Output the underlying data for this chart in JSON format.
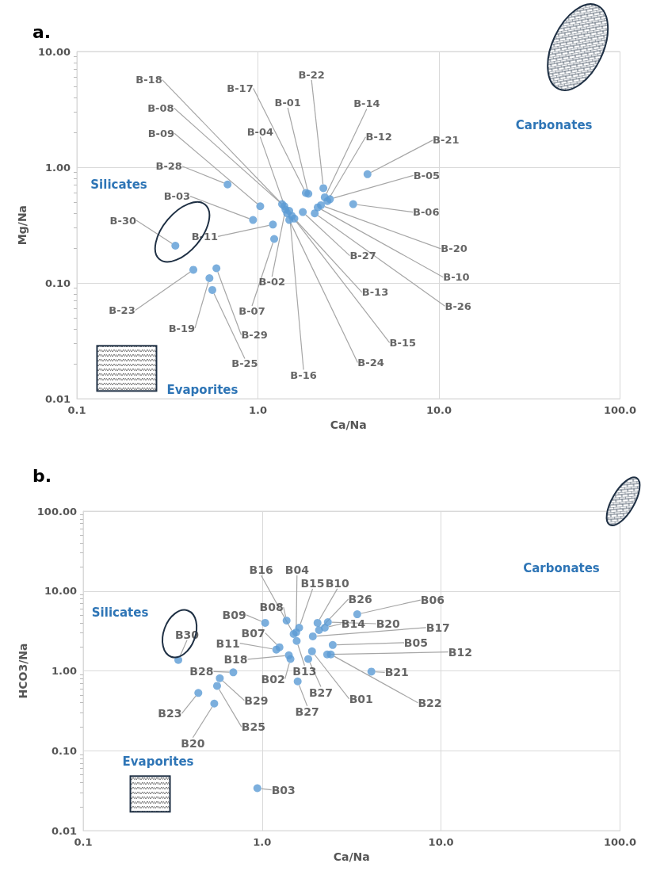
{
  "chart_data": [
    {
      "type": "scatter",
      "title": "a.",
      "xlabel": "Ca/Na",
      "ylabel": "Mg/Na",
      "log": "xy",
      "xlim": [
        0.1,
        100
      ],
      "ylim": [
        0.01,
        10
      ],
      "xticks": [
        {
          "value": 0.1,
          "label": "0.1"
        },
        {
          "value": 1,
          "label": "1.0"
        },
        {
          "value": 10,
          "label": "10.0"
        },
        {
          "value": 100,
          "label": "100.0"
        }
      ],
      "yticks": [
        {
          "value": 0.01,
          "label": "0.01"
        },
        {
          "value": 0.1,
          "label": "0.10"
        },
        {
          "value": 1,
          "label": "1.00"
        },
        {
          "value": 10,
          "label": "10.00"
        }
      ],
      "grid": true,
      "marker": "circle",
      "series": [
        {
          "color": "#5b9bd5",
          "x": [
            1.9,
            1.84,
            2.3,
            2.34,
            2.42,
            2.5,
            4.03,
            3.36,
            2.23,
            2.14,
            2.06,
            1.77,
            1.59,
            1.54,
            1.49,
            1.49,
            1.42,
            1.45,
            1.36,
            1.4,
            1.03,
            0.68,
            0.94,
            1.21,
            1.23,
            0.35,
            0.44,
            0.54,
            0.59,
            0.56
          ],
          "values": [
            0.59,
            0.6,
            0.66,
            0.55,
            0.51,
            0.53,
            0.87,
            0.48,
            0.47,
            0.45,
            0.4,
            0.41,
            0.36,
            0.38,
            0.35,
            0.42,
            0.43,
            0.4,
            0.48,
            0.46,
            0.46,
            0.71,
            0.35,
            0.32,
            0.24,
            0.21,
            0.13,
            0.11,
            0.134,
            0.087
          ],
          "value_labels": [
            "B-01",
            "B-17",
            "B-22",
            "B-14",
            "B-12",
            "B-05",
            "B-21",
            "B-06",
            "B-20",
            "B-10",
            "B-26",
            "B-27",
            "B-13",
            "B-15",
            "B-24",
            "B-16",
            "B-02",
            "B-04",
            "B-18",
            "B-08",
            "B-09",
            "B-28",
            "B-03",
            "B-11",
            "B-07",
            "B-30",
            "B-23",
            "B-19",
            "B-29",
            "B-25"
          ]
        }
      ],
      "annotations": [
        "Carbonates",
        "Silicates",
        "Evaporites"
      ]
    },
    {
      "type": "scatter",
      "title": "b.",
      "xlabel": "Ca/Na",
      "ylabel": "HCO3/Na",
      "log": "xy",
      "xlim": [
        0.1,
        100
      ],
      "ylim": [
        0.01,
        100
      ],
      "xticks": [
        {
          "value": 0.1,
          "label": "0.1"
        },
        {
          "value": 1,
          "label": "1.0"
        },
        {
          "value": 10,
          "label": "10.0"
        },
        {
          "value": 100,
          "label": "100.0"
        }
      ],
      "yticks": [
        {
          "value": 0.01,
          "label": "0.01"
        },
        {
          "value": 0.1,
          "label": "0.10"
        },
        {
          "value": 1,
          "label": "1.00"
        },
        {
          "value": 10,
          "label": "10.00"
        },
        {
          "value": 100,
          "label": "100.00"
        }
      ],
      "grid": true,
      "marker": "circle",
      "series": [
        {
          "color": "#5b9bd5",
          "x": [
            1.5,
            1.55,
            1.61,
            2.04,
            2.08,
            3.4,
            1.04,
            1.37,
            1.25,
            1.2,
            1.41,
            1.44,
            1.56,
            2.24,
            2.33,
            1.92,
            2.48,
            2.31,
            4.08,
            2.42,
            1.9,
            1.81,
            1.58,
            0.69,
            0.58,
            0.44,
            0.56,
            0.54,
            0.34,
            0.94
          ],
          "values": [
            2.9,
            3.04,
            3.48,
            4.0,
            3.25,
            5.12,
            4.0,
            4.27,
            1.98,
            1.85,
            1.57,
            1.41,
            2.37,
            3.48,
            4.08,
            2.71,
            2.11,
            1.61,
            0.98,
            1.61,
            1.76,
            1.41,
            0.74,
            0.96,
            0.81,
            0.53,
            0.65,
            0.39,
            1.37,
            0.034
          ],
          "value_labels": [
            "B16",
            "B04",
            "B15",
            "B10",
            "B26",
            "B06",
            "B09",
            "B08",
            "B07",
            "B11",
            "B18",
            "B02",
            "B13",
            "B14",
            "B20",
            "B17",
            "B05",
            "B12",
            "B21",
            "B22",
            "B01",
            "B27",
            "B27",
            "B28",
            "B29",
            "B23",
            "B25",
            "B20",
            "B30",
            "B03"
          ]
        }
      ],
      "annotations": [
        "Carbonates",
        "Silicates",
        "Evaporites"
      ]
    }
  ]
}
